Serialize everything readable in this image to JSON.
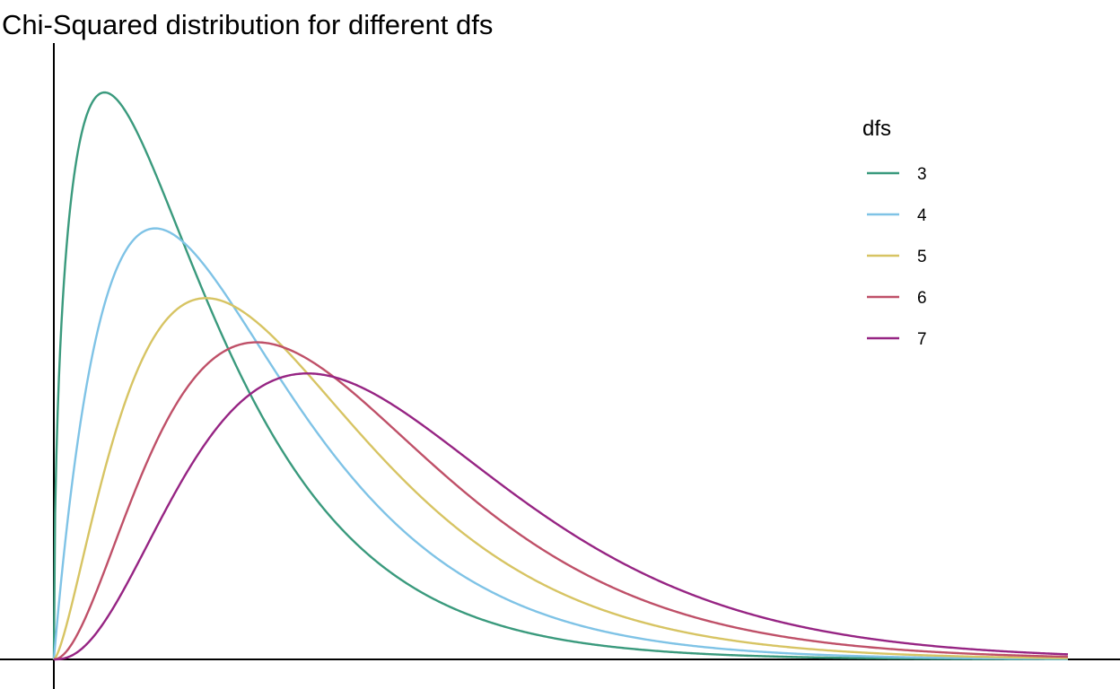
{
  "chart_data": {
    "type": "line",
    "title": "Chi-Squared distribution for different dfs",
    "xlabel": "",
    "ylabel": "",
    "xlim": [
      0,
      20
    ],
    "ylim": [
      0,
      0.255
    ],
    "grid": false,
    "legend": {
      "title": "dfs",
      "placement": "top-right"
    },
    "series": [
      {
        "name": "3",
        "df": 3,
        "color": "#3a9a7d"
      },
      {
        "name": "4",
        "df": 4,
        "color": "#7fc3e6"
      },
      {
        "name": "5",
        "df": 5,
        "color": "#d7c463"
      },
      {
        "name": "6",
        "df": 6,
        "color": "#bf5068"
      },
      {
        "name": "7",
        "df": 7,
        "color": "#962483"
      }
    ]
  }
}
